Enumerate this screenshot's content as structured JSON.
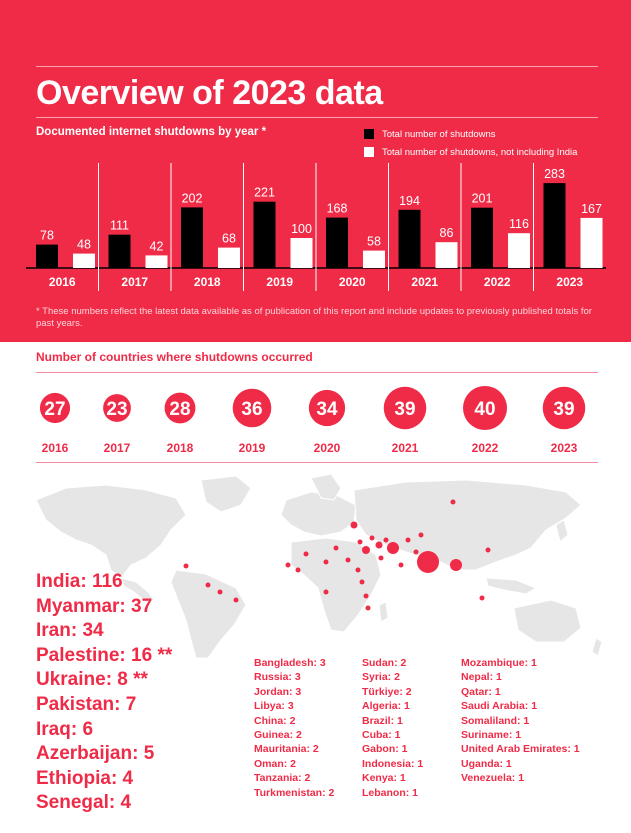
{
  "page": {
    "title": "Overview of 2023 data",
    "footnote": "* These numbers reflect the latest data available as of publication of this report and include updates to previously published totals for past years."
  },
  "colors": {
    "brand": "#ef2b47",
    "black": "#000000",
    "white": "#ffffff"
  },
  "chart_data": [
    {
      "type": "bar",
      "title": "Documented internet shutdowns by year *",
      "categories": [
        "2016",
        "2017",
        "2018",
        "2019",
        "2020",
        "2021",
        "2022",
        "2023"
      ],
      "series": [
        {
          "name": "Total number of shutdowns",
          "color": "#000000",
          "values": [
            78,
            111,
            202,
            221,
            168,
            194,
            201,
            283
          ]
        },
        {
          "name": "Total number of shutdowns, not including India",
          "color": "#ffffff",
          "values": [
            48,
            42,
            68,
            100,
            58,
            86,
            116,
            167
          ]
        }
      ],
      "ylim": [
        0,
        300
      ],
      "grid": false,
      "legend": "top-right"
    },
    {
      "type": "bubble",
      "title": "Number of countries where shutdowns occurred",
      "categories": [
        "2016",
        "2017",
        "2018",
        "2019",
        "2020",
        "2021",
        "2022",
        "2023"
      ],
      "values": [
        27,
        23,
        28,
        36,
        34,
        39,
        40,
        39
      ]
    }
  ],
  "top_countries": [
    "India: 116",
    "Myanmar: 37",
    "Iran: 34",
    "Palestine: 16 **",
    "Ukraine: 8 **",
    "Pakistan: 7",
    "Iraq: 6",
    "Azerbaijan: 5",
    "Ethiopia: 4",
    "Senegal: 4"
  ],
  "country_columns": [
    [
      "Bangladesh: 3",
      "Russia: 3",
      "Jordan: 3",
      "Libya: 3",
      "China: 2",
      "Guinea: 2",
      "Mauritania: 2",
      "Oman: 2",
      "Tanzania: 2",
      "Turkmenistan: 2"
    ],
    [
      "Sudan: 2",
      "Syria: 2",
      "Türkiye: 2",
      "Algeria: 1",
      "Brazil: 1",
      "Cuba: 1",
      "Gabon: 1",
      "Indonesia: 1",
      "Kenya: 1",
      "Lebanon: 1"
    ],
    [
      "Mozambique: 1",
      "Nepal: 1",
      "Qatar: 1",
      "Saudi Arabia: 1",
      "Somaliland: 1",
      "Suriname: 1",
      "United Arab Emirates: 1",
      "Uganda: 1",
      "Venezuela: 1"
    ]
  ]
}
